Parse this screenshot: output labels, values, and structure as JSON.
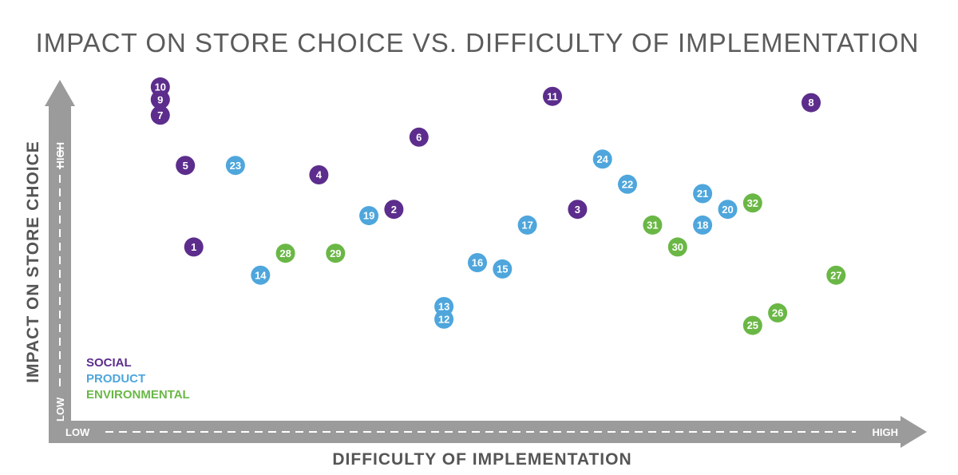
{
  "chart_data": {
    "type": "scatter",
    "title": "IMPACT ON STORE CHOICE VS. DIFFICULTY OF IMPLEMENTATION",
    "xlabel": "DIFFICULTY OF IMPLEMENTATION",
    "ylabel": "IMPACT ON STORE CHOICE",
    "x_axis": {
      "low_label": "LOW",
      "high_label": "HIGH"
    },
    "y_axis": {
      "low_label": "LOW",
      "high_label": "HIGH"
    },
    "xlim": [
      0,
      100
    ],
    "ylim": [
      0,
      100
    ],
    "grid": false,
    "legend_position": "bottom-left",
    "series": [
      {
        "name": "SOCIAL",
        "color": "#5c2d8c",
        "points": [
          {
            "label": "1",
            "x": 17,
            "y": 48
          },
          {
            "label": "2",
            "x": 41,
            "y": 60
          },
          {
            "label": "3",
            "x": 63,
            "y": 60
          },
          {
            "label": "4",
            "x": 32,
            "y": 71
          },
          {
            "label": "5",
            "x": 16,
            "y": 74
          },
          {
            "label": "6",
            "x": 44,
            "y": 83
          },
          {
            "label": "7",
            "x": 13,
            "y": 90
          },
          {
            "label": "8",
            "x": 91,
            "y": 94
          },
          {
            "label": "9",
            "x": 13,
            "y": 95
          },
          {
            "label": "10",
            "x": 13,
            "y": 99
          },
          {
            "label": "11",
            "x": 60,
            "y": 96
          }
        ]
      },
      {
        "name": "PRODUCT",
        "color": "#4ea6dc",
        "points": [
          {
            "label": "12",
            "x": 47,
            "y": 25
          },
          {
            "label": "13",
            "x": 47,
            "y": 29
          },
          {
            "label": "14",
            "x": 25,
            "y": 39
          },
          {
            "label": "15",
            "x": 54,
            "y": 41
          },
          {
            "label": "16",
            "x": 51,
            "y": 43
          },
          {
            "label": "17",
            "x": 57,
            "y": 55
          },
          {
            "label": "18",
            "x": 78,
            "y": 55
          },
          {
            "label": "19",
            "x": 38,
            "y": 58
          },
          {
            "label": "20",
            "x": 81,
            "y": 60
          },
          {
            "label": "21",
            "x": 78,
            "y": 65
          },
          {
            "label": "22",
            "x": 69,
            "y": 68
          },
          {
            "label": "23",
            "x": 22,
            "y": 74
          },
          {
            "label": "24",
            "x": 66,
            "y": 76
          }
        ]
      },
      {
        "name": "ENVIRONMENTAL",
        "color": "#6ab746",
        "points": [
          {
            "label": "25",
            "x": 84,
            "y": 23
          },
          {
            "label": "26",
            "x": 87,
            "y": 27
          },
          {
            "label": "27",
            "x": 94,
            "y": 39
          },
          {
            "label": "28",
            "x": 28,
            "y": 46
          },
          {
            "label": "29",
            "x": 34,
            "y": 46
          },
          {
            "label": "30",
            "x": 75,
            "y": 48
          },
          {
            "label": "31",
            "x": 72,
            "y": 55
          },
          {
            "label": "32",
            "x": 84,
            "y": 62
          }
        ]
      }
    ]
  }
}
